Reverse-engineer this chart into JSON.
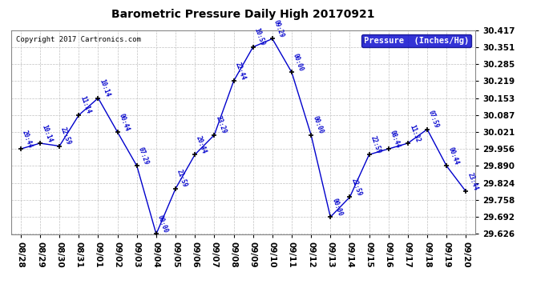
{
  "title": "Barometric Pressure Daily High 20170921",
  "copyright": "Copyright 2017 Cartronics.com",
  "legend_label": "Pressure  (Inches/Hg)",
  "x_labels": [
    "08/28",
    "08/29",
    "08/30",
    "08/31",
    "09/01",
    "09/02",
    "09/03",
    "09/04",
    "09/05",
    "09/06",
    "09/07",
    "09/08",
    "09/09",
    "09/10",
    "09/11",
    "09/12",
    "09/13",
    "09/14",
    "09/15",
    "09/16",
    "09/17",
    "09/18",
    "09/19",
    "09/20"
  ],
  "time_labels": [
    "20:44",
    "10:14",
    "22:59",
    "11:14",
    "10:14",
    "00:44",
    "07:29",
    "00:00",
    "21:59",
    "20:44",
    "23:29",
    "22:44",
    "10:59",
    "09:29",
    "00:00",
    "00:00",
    "00:00",
    "22:59",
    "22:59",
    "08:44",
    "11:32",
    "07:59",
    "00:44",
    "23:44"
  ],
  "y_values": [
    29.956,
    29.978,
    29.967,
    30.087,
    30.153,
    30.021,
    29.89,
    29.626,
    29.802,
    29.934,
    30.01,
    30.219,
    30.351,
    30.383,
    30.253,
    30.01,
    29.692,
    29.769,
    29.934,
    29.956,
    29.978,
    30.032,
    29.89,
    29.791
  ],
  "y_min": 29.626,
  "y_max": 30.417,
  "y_ticks": [
    29.626,
    29.692,
    29.758,
    29.824,
    29.89,
    29.956,
    30.021,
    30.087,
    30.153,
    30.219,
    30.285,
    30.351,
    30.417
  ],
  "line_color": "#0000CC",
  "marker_color": "#000000",
  "bg_color": "#ffffff",
  "grid_color": "#c0c0c0",
  "label_color": "#0000CC",
  "title_color": "#000000",
  "legend_bg": "#0000CC",
  "legend_fg": "#ffffff",
  "copyright_color": "#000000"
}
